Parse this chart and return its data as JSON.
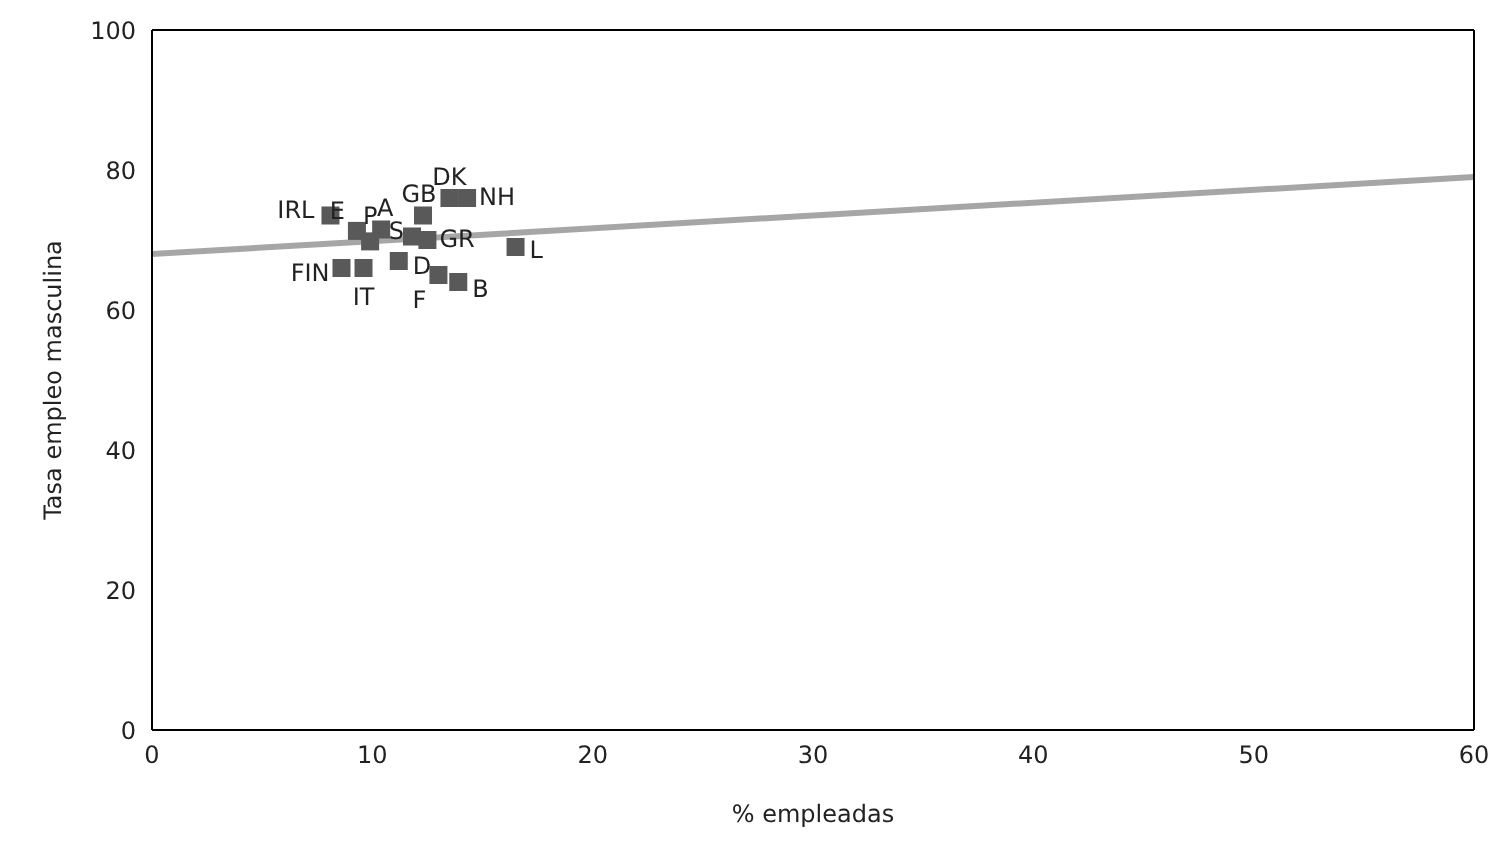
{
  "chart_data": {
    "type": "scatter",
    "xlabel": "% empleadas",
    "ylabel": "Tasa empleo masculina",
    "xlim": [
      0,
      60
    ],
    "ylim": [
      0,
      100
    ],
    "xticks": [
      0,
      10,
      20,
      30,
      40,
      50,
      60
    ],
    "yticks": [
      0,
      20,
      40,
      60,
      80,
      100
    ],
    "marker": "square",
    "series": [
      {
        "color": "#595959",
        "x": [
          8.1,
          9.3,
          10.4,
          9.9,
          11.8,
          12.3,
          12.5,
          13.5,
          14.3,
          16.5,
          11.2,
          8.6,
          9.6,
          13.0,
          13.9
        ],
        "values": [
          73.5,
          71.3,
          71.5,
          69.8,
          70.5,
          73.5,
          70,
          76,
          76,
          69,
          67,
          66,
          66,
          65,
          64
        ]
      },
      {
        "type": "line",
        "color": "#a6a6a6",
        "x": [
          0,
          60
        ],
        "values": [
          68,
          79
        ],
        "marker": "none"
      }
    ],
    "annotations": [
      {
        "text": "IRL",
        "x": 8.1,
        "y": 73.5
      },
      {
        "text": "E",
        "x": 9.3,
        "y": 71.3
      },
      {
        "text": "A",
        "x": 10.4,
        "y": 71.5
      },
      {
        "text": "P",
        "x": 9.9,
        "y": 69.8
      },
      {
        "text": "S",
        "x": 11.8,
        "y": 70.5
      },
      {
        "text": "GB",
        "x": 12.3,
        "y": 73.5
      },
      {
        "text": "GR",
        "x": 12.5,
        "y": 70
      },
      {
        "text": "DK",
        "x": 13.5,
        "y": 76
      },
      {
        "text": "NH",
        "x": 14.3,
        "y": 76
      },
      {
        "text": "L",
        "x": 16.5,
        "y": 69
      },
      {
        "text": "D",
        "x": 11.2,
        "y": 67
      },
      {
        "text": "FIN",
        "x": 8.6,
        "y": 66
      },
      {
        "text": "IT",
        "x": 9.6,
        "y": 66
      },
      {
        "text": "F",
        "x": 13.0,
        "y": 65
      },
      {
        "text": "B",
        "x": 13.9,
        "y": 64
      }
    ]
  }
}
